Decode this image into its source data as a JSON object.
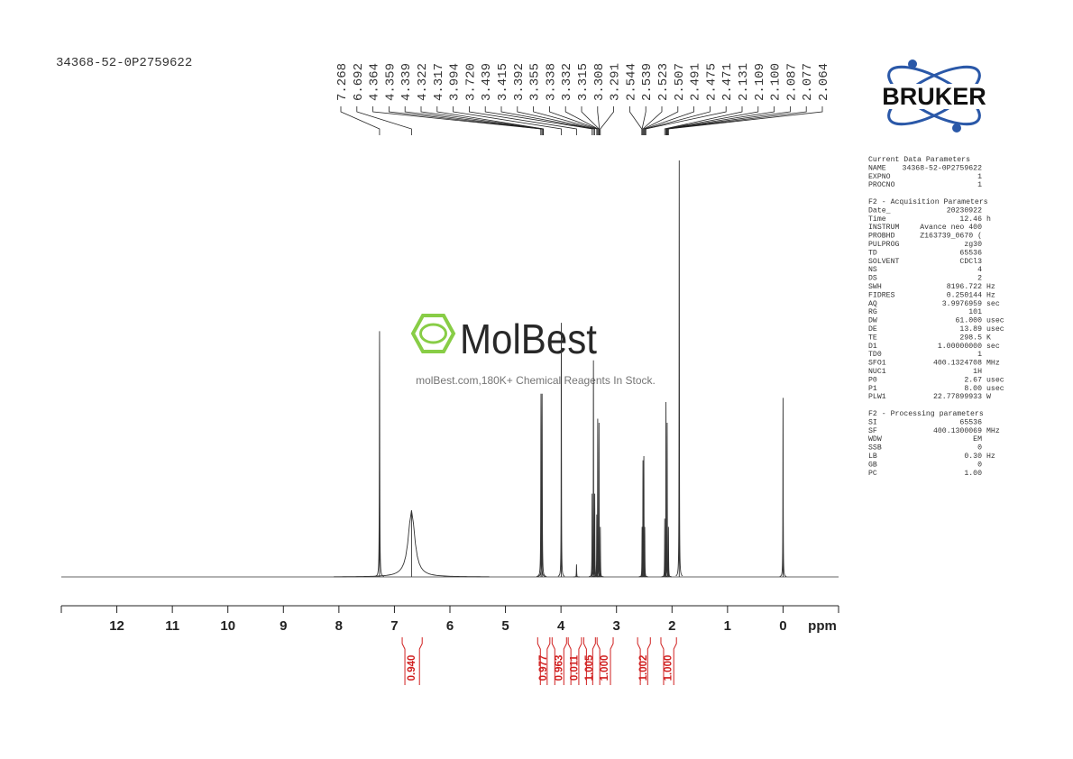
{
  "sample_id": "34368-52-0P2759622",
  "logo": "BRUKER",
  "watermark": {
    "brand": "MolBest",
    "tagline": "molBest.com,180K+ Chemical Reagents In Stock."
  },
  "chart_data": {
    "type": "spectrum",
    "xlabel": "ppm",
    "xlim": [
      13,
      -1
    ],
    "ylim": [
      0,
      100
    ],
    "xticks": [
      12,
      11,
      10,
      9,
      8,
      7,
      6,
      5,
      4,
      3,
      2,
      1,
      0
    ],
    "color": "#333333",
    "x": [
      7.268,
      6.692,
      4.36,
      4.34,
      3.994,
      3.72,
      3.439,
      3.415,
      3.392,
      3.355,
      3.338,
      3.315,
      3.291,
      2.539,
      2.523,
      2.507,
      2.491,
      2.131,
      2.109,
      2.087,
      2.064,
      1.87,
      0
    ],
    "values": [
      59,
      16,
      44,
      44,
      61,
      3,
      20,
      52,
      20,
      15,
      38,
      37,
      12,
      12,
      28,
      29,
      12,
      14,
      42,
      37,
      12,
      100,
      43
    ],
    "widths": [
      0.004,
      0.07,
      0.004,
      0.004,
      0.003,
      0.003,
      0.003,
      0.003,
      0.003,
      0.003,
      0.003,
      0.003,
      0.003,
      0.003,
      0.003,
      0.003,
      0.003,
      0.003,
      0.003,
      0.003,
      0.003,
      0.003,
      0.003
    ],
    "peak_labels": [
      7.268,
      6.692,
      4.364,
      4.359,
      4.339,
      4.322,
      4.317,
      3.994,
      {
        "value": 3.72,
        "label": "3.720"
      },
      3.439,
      3.415,
      3.392,
      3.355,
      3.338,
      3.332,
      3.315,
      3.308,
      3.291,
      2.544,
      2.539,
      2.523,
      2.507,
      2.491,
      2.475,
      2.471,
      2.131,
      2.109,
      {
        "value": 2.1,
        "label": "2.100"
      },
      2.087,
      2.077,
      2.064
    ],
    "integrals": [
      {
        "range": [
          6.86,
          6.5
        ],
        "value": 0.94,
        "label": "0.940"
      },
      {
        "range": [
          4.42,
          4.2
        ],
        "value": 0.977,
        "label": "0.977"
      },
      {
        "range": [
          4.16,
          3.9
        ],
        "value": 0.963,
        "label": "0.963"
      },
      {
        "range": [
          3.87,
          3.63
        ],
        "value": 0.011,
        "label": "0.011"
      },
      {
        "range": [
          3.59,
          3.38
        ],
        "value": 1.005,
        "label": "1.005"
      },
      {
        "range": [
          3.35,
          3.06
        ],
        "value": 1,
        "label": "1.000"
      },
      {
        "range": [
          2.62,
          2.39
        ],
        "value": 1.002,
        "label": "1.002"
      },
      {
        "range": [
          2.2,
          1.92
        ],
        "value": 1,
        "label": "1.000"
      }
    ]
  },
  "parameters": [
    {
      "title": "Current Data Parameters",
      "rows": [
        {
          "name": "NAME",
          "value": "34368-52-0P2759622"
        },
        {
          "name": "EXPNO",
          "value": "1"
        },
        {
          "name": "PROCNO",
          "value": "1"
        }
      ]
    },
    {
      "title": "F2 - Acquisition Parameters",
      "rows": [
        {
          "name": "Date_",
          "value": "20230922"
        },
        {
          "name": "Time",
          "value": "12.46",
          "unit": "h"
        },
        {
          "name": "INSTRUM",
          "value": "Avance neo 400"
        },
        {
          "name": "PROBHD",
          "value": "Z163739_0670 ("
        },
        {
          "name": "PULPROG",
          "value": "zg30"
        },
        {
          "name": "TD",
          "value": "65536"
        },
        {
          "name": "SOLVENT",
          "value": "CDCl3"
        },
        {
          "name": "NS",
          "value": "4"
        },
        {
          "name": "DS",
          "value": "2"
        },
        {
          "name": "SWH",
          "value": "8196.722",
          "unit": "Hz"
        },
        {
          "name": "FIDRES",
          "value": "0.250144",
          "unit": "Hz"
        },
        {
          "name": "AQ",
          "value": "3.9976959",
          "unit": "sec"
        },
        {
          "name": "RG",
          "value": "101"
        },
        {
          "name": "DW",
          "value": "61.000",
          "unit": "usec"
        },
        {
          "name": "DE",
          "value": "13.89",
          "unit": "usec"
        },
        {
          "name": "TE",
          "value": "298.5",
          "unit": "K"
        },
        {
          "name": "D1",
          "value": "1.00000000",
          "unit": "sec"
        },
        {
          "name": "TD0",
          "value": "1"
        },
        {
          "name": "SFO1",
          "value": "400.1324708",
          "unit": "MHz"
        },
        {
          "name": "NUC1",
          "value": "1H"
        },
        {
          "name": "P0",
          "value": "2.67",
          "unit": "usec"
        },
        {
          "name": "P1",
          "value": "8.00",
          "unit": "usec"
        },
        {
          "name": "PLW1",
          "value": "22.77899933",
          "unit": "W"
        }
      ]
    },
    {
      "title": "F2 - Processing parameters",
      "rows": [
        {
          "name": "SI",
          "value": "65536"
        },
        {
          "name": "SF",
          "value": "400.1300069",
          "unit": "MHz"
        },
        {
          "name": "WDW",
          "value": "EM"
        },
        {
          "name": "SSB",
          "value": "0"
        },
        {
          "name": "LB",
          "value": "0.30",
          "unit": "Hz"
        },
        {
          "name": "GB",
          "value": "0"
        },
        {
          "name": "PC",
          "value": "1.00"
        }
      ]
    }
  ]
}
